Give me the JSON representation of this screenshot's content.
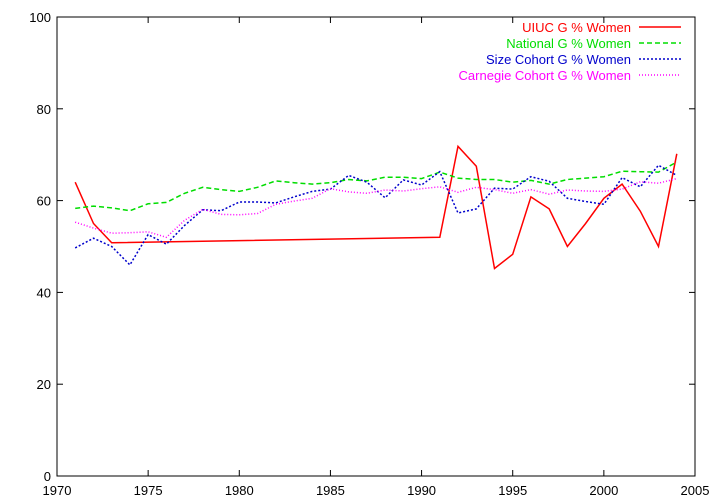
{
  "chart_data": {
    "type": "line",
    "title": "",
    "xlabel": "",
    "ylabel": "",
    "xlim": [
      1970,
      2005
    ],
    "ylim": [
      0,
      100
    ],
    "x_ticks": [
      1970,
      1975,
      1980,
      1985,
      1990,
      1995,
      2000,
      2005
    ],
    "y_ticks": [
      0,
      20,
      40,
      60,
      80,
      100
    ],
    "grid": false,
    "legend_position": "top-right",
    "series": [
      {
        "name": "UIUC G % Women",
        "color": "#ff0000",
        "dash": "solid",
        "x": [
          1971,
          1972,
          1973,
          1991,
          1992,
          1993,
          1994,
          1995,
          1996,
          1997,
          1998,
          1999,
          2000,
          2001,
          2002,
          2003,
          2004
        ],
        "y": [
          64.0,
          55.0,
          50.8,
          52.0,
          71.8,
          67.5,
          45.2,
          48.3,
          60.8,
          58.2,
          50.0,
          55.0,
          60.5,
          63.6,
          57.7,
          50.0,
          70.2
        ]
      },
      {
        "name": "National G % Women",
        "color": "#00dd00",
        "dash": "dashed",
        "x": [
          1971,
          1972,
          1973,
          1974,
          1975,
          1976,
          1977,
          1978,
          1979,
          1980,
          1981,
          1982,
          1983,
          1984,
          1985,
          1986,
          1987,
          1988,
          1989,
          1990,
          1991,
          1992,
          1993,
          1994,
          1995,
          1996,
          1997,
          1998,
          1999,
          2000,
          2001,
          2002,
          2003,
          2004
        ],
        "y": [
          58.3,
          58.8,
          58.4,
          57.8,
          59.3,
          59.6,
          61.6,
          62.9,
          62.4,
          62.0,
          62.9,
          64.3,
          63.9,
          63.6,
          63.9,
          64.6,
          64.3,
          65.1,
          65.1,
          64.8,
          66.2,
          64.9,
          64.6,
          64.6,
          64.0,
          64.4,
          63.6,
          64.6,
          64.9,
          65.2,
          66.4,
          66.3,
          66.2,
          68.4
        ]
      },
      {
        "name": "Size Cohort G % Women",
        "color": "#0000cc",
        "dash": "dotted",
        "x": [
          1971,
          1972,
          1973,
          1974,
          1975,
          1976,
          1977,
          1978,
          1979,
          1980,
          1981,
          1982,
          1983,
          1984,
          1985,
          1986,
          1987,
          1988,
          1989,
          1990,
          1991,
          1992,
          1993,
          1994,
          1995,
          1996,
          1997,
          1998,
          1999,
          2000,
          2001,
          2002,
          2003,
          2004
        ],
        "y": [
          49.7,
          51.8,
          50.0,
          46.0,
          52.6,
          50.5,
          54.6,
          58.0,
          57.8,
          59.7,
          59.7,
          59.5,
          60.8,
          62.0,
          62.5,
          65.5,
          64.0,
          60.6,
          64.5,
          63.4,
          66.3,
          57.3,
          58.2,
          62.7,
          62.5,
          65.2,
          64.2,
          60.5,
          59.8,
          59.2,
          65.0,
          63.0,
          67.7,
          65.5
        ]
      },
      {
        "name": "Carnegie Cohort G % Women",
        "color": "#ff00ff",
        "dash": "fine-dotted",
        "x": [
          1971,
          1972,
          1973,
          1974,
          1975,
          1976,
          1977,
          1978,
          1979,
          1980,
          1981,
          1982,
          1983,
          1984,
          1985,
          1986,
          1987,
          1988,
          1989,
          1990,
          1991,
          1992,
          1993,
          1994,
          1995,
          1996,
          1997,
          1998,
          1999,
          2000,
          2001,
          2002,
          2003,
          2004
        ],
        "y": [
          55.3,
          54.0,
          52.9,
          53.0,
          53.2,
          52.0,
          55.7,
          58.1,
          57.0,
          56.9,
          57.2,
          59.2,
          59.9,
          60.5,
          62.6,
          61.9,
          61.6,
          62.3,
          62.1,
          62.6,
          63.0,
          61.8,
          62.9,
          62.4,
          61.6,
          62.4,
          61.4,
          62.3,
          62.1,
          62.0,
          62.5,
          64.1,
          63.8,
          64.8
        ]
      }
    ]
  }
}
